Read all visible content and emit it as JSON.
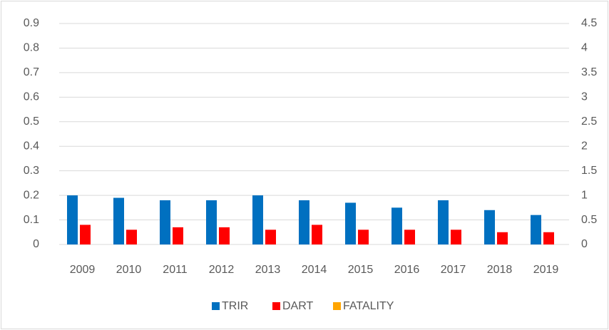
{
  "chart_data": {
    "type": "bar",
    "categories": [
      "2009",
      "2010",
      "2011",
      "2012",
      "2013",
      "2014",
      "2015",
      "2016",
      "2017",
      "2018",
      "2019"
    ],
    "series": [
      {
        "name": "TRIR",
        "color": "#0070c0",
        "values": [
          0.2,
          0.19,
          0.18,
          0.18,
          0.2,
          0.18,
          0.17,
          0.15,
          0.18,
          0.14,
          0.12
        ]
      },
      {
        "name": "DART",
        "color": "#ff0000",
        "values": [
          0.08,
          0.06,
          0.07,
          0.07,
          0.06,
          0.08,
          0.06,
          0.06,
          0.06,
          0.05,
          0.05
        ]
      },
      {
        "name": "FATALITY",
        "color": "#ffa500",
        "values": [
          0,
          0,
          0,
          0,
          0,
          0,
          0,
          0,
          0,
          0,
          0
        ]
      }
    ],
    "ylim": [
      0,
      0.9
    ],
    "yticks": [
      0,
      0.1,
      0.2,
      0.3,
      0.4,
      0.5,
      0.6,
      0.7,
      0.8,
      0.9
    ],
    "y2lim": [
      0,
      4.5
    ],
    "y2ticks": [
      0,
      0.5,
      1,
      1.5,
      2,
      2.5,
      3,
      3.5,
      4,
      4.5
    ],
    "grid": true,
    "legend": "bottom"
  }
}
